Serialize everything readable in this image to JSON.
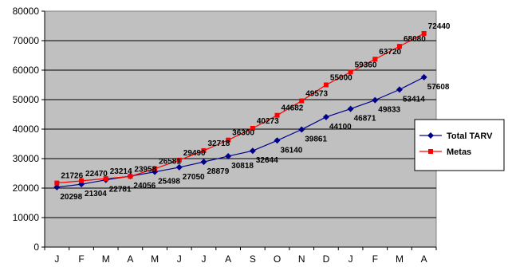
{
  "chart_data": {
    "type": "line",
    "categories": [
      "J",
      "F",
      "M",
      "A",
      "M",
      "J",
      "J",
      "A",
      "S",
      "O",
      "N",
      "D",
      "J",
      "F",
      "M",
      "A"
    ],
    "series": [
      {
        "name": "Total TARV",
        "color": "#00008B",
        "marker": "diamond",
        "values": [
          20298,
          21304,
          22781,
          24056,
          25498,
          27050,
          28879,
          30818,
          32644,
          36140,
          39861,
          44100,
          46871,
          49833,
          53414,
          57608
        ],
        "labels": [
          "20298",
          "21304",
          "22781",
          "24056",
          "25498",
          "27050",
          "28879",
          "30818",
          "32644",
          "36140",
          "39861",
          "44100",
          "46871",
          "49833",
          "53414",
          "57608"
        ]
      },
      {
        "name": "Metas",
        "color": "#FF0000",
        "marker": "square",
        "values": [
          21726,
          22470,
          23214,
          23958,
          26581,
          29490,
          32718,
          36300,
          40273,
          44682,
          49573,
          55000,
          59360,
          63720,
          68080,
          72440
        ],
        "labels": [
          "21726",
          "22470",
          "23214",
          "23958",
          "26581",
          "29490",
          "32718",
          "36300",
          "40273",
          "44682",
          "49573",
          "55000",
          "59360",
          "63720",
          "68080",
          "72440"
        ]
      }
    ],
    "ylim": [
      0,
      80000
    ],
    "yticks": [
      0,
      10000,
      20000,
      30000,
      40000,
      50000,
      60000,
      70000,
      80000
    ],
    "ytick_labels": [
      "0",
      "10000",
      "20000",
      "30000",
      "40000",
      "50000",
      "60000",
      "70000",
      "80000"
    ],
    "grid": true,
    "plot_background": "#C0C0C0",
    "legend_position": "right"
  }
}
